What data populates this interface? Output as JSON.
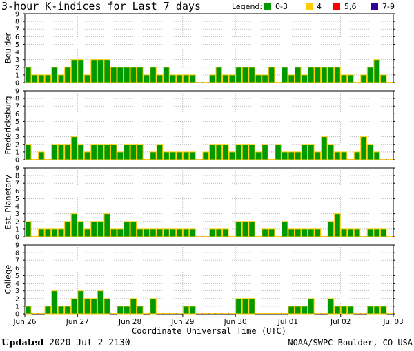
{
  "title": "3-hour K-indices for Last 7 days",
  "legend": {
    "title": "Legend:",
    "items": [
      {
        "label": "0-3",
        "color": "#009900"
      },
      {
        "label": "4",
        "color": "#ffcc00"
      },
      {
        "label": "5,6",
        "color": "#ff0000"
      },
      {
        "label": "7-9",
        "color": "#330099"
      }
    ]
  },
  "colors": {
    "bar_fill": "#009900",
    "bar_outline": "#ffcc00",
    "grid": "#999999"
  },
  "footer": {
    "updated_label": "Updated",
    "updated_value": "2020 Jul  2 2130",
    "source": "NOAA/SWPC Boulder, CO USA"
  },
  "chart_data": {
    "type": "bar",
    "xlabel": "Coordinate Universal Time (UTC)",
    "x_ticks": [
      "Jun 26",
      "Jun 27",
      "Jun 28",
      "Jun 29",
      "Jun 30",
      "Jul 01",
      "Jul 02",
      "Jul 03"
    ],
    "y_ticks": [
      "0",
      "1",
      "2",
      "3",
      "4",
      "5",
      "6",
      "7",
      "8",
      "9"
    ],
    "ylim": [
      0,
      9
    ],
    "bins_per_day": 8,
    "grid": "horizontal dotted",
    "panels": [
      {
        "name": "Boulder",
        "values": [
          2,
          1,
          1,
          1,
          2,
          1,
          2,
          3,
          3,
          1,
          3,
          3,
          3,
          2,
          2,
          2,
          2,
          2,
          1,
          2,
          1,
          2,
          1,
          1,
          1,
          1,
          0,
          0,
          1,
          2,
          1,
          1,
          2,
          2,
          2,
          1,
          1,
          2,
          0,
          2,
          1,
          2,
          1,
          2,
          2,
          2,
          2,
          2,
          1,
          1,
          0,
          1,
          2,
          3,
          1,
          0
        ]
      },
      {
        "name": "Fredericksburg",
        "values": [
          2,
          0,
          1,
          0,
          2,
          2,
          2,
          3,
          2,
          1,
          2,
          2,
          2,
          2,
          1,
          2,
          2,
          2,
          0,
          1,
          2,
          1,
          1,
          1,
          1,
          1,
          0,
          1,
          2,
          2,
          2,
          1,
          2,
          2,
          2,
          1,
          2,
          0,
          2,
          1,
          1,
          1,
          2,
          2,
          1,
          3,
          2,
          1,
          1,
          0,
          1,
          3,
          2,
          1,
          0,
          0
        ]
      },
      {
        "name": "Est. Planetary",
        "values": [
          2,
          0,
          1,
          1,
          1,
          1,
          2,
          3,
          2,
          1,
          2,
          2,
          3,
          1,
          1,
          2,
          2,
          1,
          1,
          1,
          1,
          1,
          1,
          1,
          1,
          1,
          0,
          0,
          1,
          1,
          1,
          0,
          2,
          2,
          2,
          0,
          1,
          1,
          0,
          2,
          1,
          1,
          1,
          1,
          1,
          0,
          2,
          3,
          1,
          1,
          1,
          0,
          1,
          1,
          1,
          0
        ]
      },
      {
        "name": "College",
        "values": [
          1,
          0,
          0,
          1,
          3,
          1,
          1,
          2,
          3,
          2,
          2,
          3,
          2,
          0,
          1,
          1,
          2,
          1,
          0,
          2,
          0,
          0,
          0,
          0,
          1,
          1,
          0,
          0,
          0,
          0,
          0,
          0,
          2,
          2,
          2,
          0,
          0,
          0,
          0,
          0,
          1,
          1,
          1,
          2,
          0,
          0,
          2,
          1,
          1,
          1,
          0,
          0,
          1,
          1,
          1,
          0
        ]
      }
    ]
  }
}
